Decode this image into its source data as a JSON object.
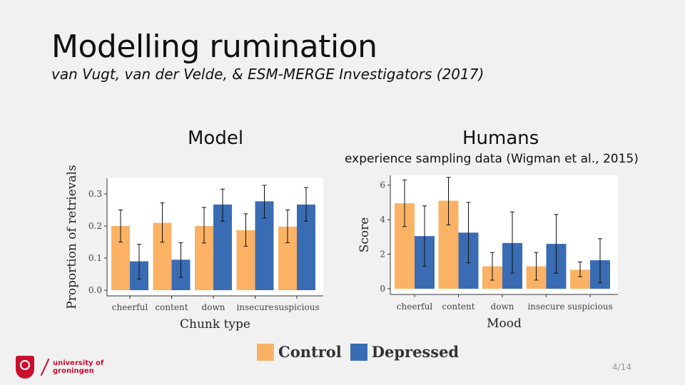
{
  "title": "Modelling rumination",
  "subtitle": "van Vugt, van der Velde, & ESM-MERGE Investigators (2017)",
  "left_panel": {
    "heading": "Model"
  },
  "right_panel": {
    "heading": "Humans",
    "subheading": "experience sampling data (Wigman et al., 2015)"
  },
  "legend": {
    "control": "Control",
    "depressed": "Depressed"
  },
  "colors": {
    "control": "#fbb264",
    "depressed": "#3a6cb4"
  },
  "logo": {
    "line1": "university of",
    "line2": "groningen"
  },
  "page_number": "4/14",
  "chart_data": [
    {
      "type": "bar",
      "title": "Model",
      "xlabel": "Chunk type",
      "ylabel": "Proportion of retrievals",
      "categories": [
        "cheerful",
        "content",
        "down",
        "insecure",
        "suspicious"
      ],
      "ylim": [
        0,
        0.34
      ],
      "yticks": [
        "0.0",
        "0.1",
        "0.2",
        "0.3"
      ],
      "series": [
        {
          "name": "Control",
          "values": [
            0.2,
            0.21,
            0.2,
            0.187,
            0.198
          ],
          "err_low": [
            0.15,
            0.15,
            0.147,
            0.137,
            0.148
          ],
          "err_high": [
            0.25,
            0.272,
            0.258,
            0.238,
            0.25
          ]
        },
        {
          "name": "Depressed",
          "values": [
            0.09,
            0.095,
            0.267,
            0.277,
            0.267
          ],
          "err_low": [
            0.035,
            0.04,
            0.215,
            0.225,
            0.215
          ],
          "err_high": [
            0.143,
            0.148,
            0.315,
            0.327,
            0.32
          ]
        }
      ]
    },
    {
      "type": "bar",
      "title": "Humans",
      "xlabel": "Mood",
      "ylabel": "Score",
      "categories": [
        "cheerful",
        "content",
        "down",
        "insecure",
        "suspicious"
      ],
      "ylim": [
        0,
        6.4
      ],
      "yticks": [
        "0",
        "2",
        "4",
        "6"
      ],
      "series": [
        {
          "name": "Control",
          "values": [
            4.95,
            5.1,
            1.3,
            1.3,
            1.1
          ],
          "err_low": [
            3.6,
            3.7,
            0.5,
            0.5,
            0.7
          ],
          "err_high": [
            6.3,
            6.45,
            2.1,
            2.1,
            1.55
          ]
        },
        {
          "name": "Depressed",
          "values": [
            3.05,
            3.25,
            2.65,
            2.6,
            1.65
          ],
          "err_low": [
            1.3,
            1.5,
            0.9,
            0.9,
            0.35
          ],
          "err_high": [
            4.8,
            5.0,
            4.45,
            4.3,
            2.9
          ]
        }
      ]
    }
  ]
}
